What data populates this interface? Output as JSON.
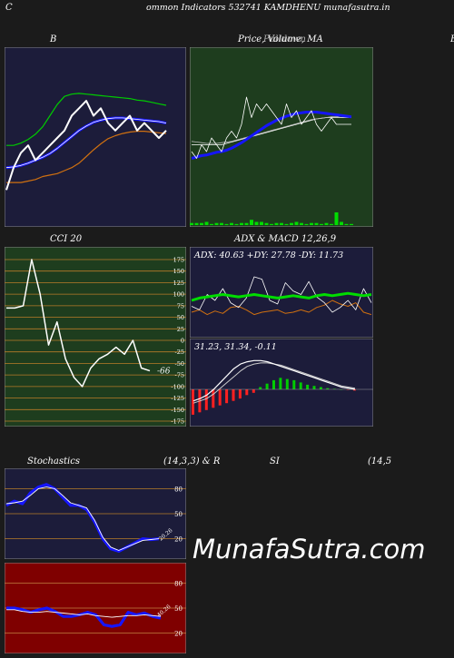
{
  "header": {
    "left_letter": "C",
    "title": "ommon  Indicators 532741 KAMDHENU munafasutra.in"
  },
  "labels": {
    "bb": "B",
    "price": "Price,  Volume, MA",
    "price_overlay": "Pulldown",
    "price_right": "B",
    "cci": "CCI 20",
    "adx_macd": "ADX  & MACD 12,26,9",
    "stoch": "Stochastics",
    "stoch_params": "(14,3,3) & R",
    "rsi": "SI",
    "rsi_params": "(14,5"
  },
  "watermark": "MunafaSutra.com",
  "colors": {
    "navy": "#1c1c3a",
    "green": "#1e3d1e",
    "red": "#7f0000",
    "blue_line": "#1515ff",
    "orange_line": "#d07010",
    "lime": "#00dd00"
  },
  "chart_data": [
    {
      "type": "line",
      "name": "bollinger",
      "series": [
        {
          "name": "price",
          "values": [
            14,
            17,
            19,
            20,
            18,
            19,
            20,
            21,
            22,
            24,
            25,
            26,
            24,
            25,
            23,
            22,
            23,
            24,
            22,
            23,
            22,
            21,
            22
          ]
        },
        {
          "name": "upper",
          "values": [
            20,
            20,
            20.3,
            20.8,
            21.5,
            22.5,
            24,
            25.5,
            26.6,
            26.9,
            27,
            26.9,
            26.8,
            26.7,
            26.6,
            26.5,
            26.4,
            26.3,
            26.1,
            26,
            25.8,
            25.6,
            25.4
          ]
        },
        {
          "name": "middle",
          "values": [
            17,
            17.1,
            17.3,
            17.6,
            18,
            18.4,
            18.9,
            19.6,
            20.4,
            21.2,
            22,
            22.6,
            23.1,
            23.4,
            23.6,
            23.7,
            23.7,
            23.6,
            23.5,
            23.4,
            23.3,
            23.2,
            23
          ]
        },
        {
          "name": "lower",
          "values": [
            15,
            15,
            15,
            15.2,
            15.4,
            15.8,
            16,
            16.2,
            16.6,
            17,
            17.6,
            18.5,
            19.4,
            20.2,
            20.9,
            21.3,
            21.6,
            21.8,
            21.9,
            21.9,
            21.8,
            21.7,
            21.6
          ]
        }
      ]
    },
    {
      "type": "line",
      "name": "price_volume_ma",
      "series": [
        {
          "name": "price",
          "values": [
            20,
            19,
            21,
            20,
            22,
            21,
            20,
            22,
            23,
            22,
            24,
            28,
            25,
            27,
            26,
            27,
            26,
            25,
            24,
            27,
            25,
            26,
            24,
            25,
            26,
            24,
            23,
            24,
            25,
            24,
            24,
            24,
            24
          ]
        },
        {
          "name": "ma_blue",
          "values": [
            19,
            19.2,
            19.4,
            19.5,
            19.7,
            19.9,
            20,
            20.2,
            20.5,
            20.9,
            21.3,
            21.8,
            22.3,
            22.8,
            23.3,
            23.8,
            24.2,
            24.6,
            24.9,
            25.2,
            25.4,
            25.6,
            25.7,
            25.8,
            25.8,
            25.8,
            25.7,
            25.6,
            25.5,
            25.4,
            25.3,
            25.2,
            25.1
          ]
        },
        {
          "name": "ma_white",
          "values": [
            21,
            21,
            21,
            21,
            21,
            21,
            21,
            21.2,
            21.4,
            21.6,
            21.8,
            22,
            22.2,
            22.4,
            22.6,
            22.8,
            23,
            23.2,
            23.4,
            23.6,
            23.8,
            24,
            24.2,
            24.4,
            24.6,
            24.8,
            24.9,
            25,
            25,
            25,
            25,
            25,
            25
          ]
        },
        {
          "name": "ma_white_2",
          "values": [
            21.5,
            21.4,
            21.3,
            21.2,
            21.2,
            21.2,
            21.3,
            21.4,
            21.5,
            21.7,
            21.9,
            22.1,
            22.3,
            22.5,
            22.7,
            22.9,
            23.1,
            23.3,
            23.5,
            23.7,
            23.9,
            24.1,
            24.3,
            24.5,
            24.7,
            24.8,
            24.9,
            25,
            25.1,
            25.1,
            25.2,
            25.2,
            25.2
          ]
        },
        {
          "name": "volume",
          "values": [
            2,
            2,
            2,
            3,
            1,
            2,
            2,
            1,
            2,
            1,
            2,
            2,
            5,
            3,
            3,
            2,
            1,
            2,
            2,
            1,
            2,
            3,
            2,
            1,
            2,
            2,
            1,
            2,
            1,
            12,
            3,
            1,
            1
          ]
        }
      ]
    },
    {
      "type": "line",
      "name": "cci",
      "ylim": [
        -175,
        175
      ],
      "ticks": [
        175,
        150,
        125,
        100,
        75,
        50,
        25,
        0,
        -25,
        -50,
        -75,
        -100,
        -125,
        -150,
        -175
      ],
      "last_value_label": "-66",
      "series": [
        {
          "name": "cci",
          "values": [
            70,
            70,
            75,
            175,
            100,
            -10,
            40,
            -40,
            -80,
            -100,
            -60,
            -40,
            -30,
            -15,
            -30,
            0,
            -60,
            -66
          ]
        }
      ]
    },
    {
      "type": "line",
      "name": "adx",
      "readout": "ADX: 40.63  +DY: 27.78  -DY: 11.73",
      "series": [
        {
          "name": "adx",
          "values": [
            30,
            32,
            33,
            34,
            35,
            34,
            33,
            34,
            35,
            34,
            33,
            32,
            33,
            34,
            33,
            32,
            34,
            35,
            34,
            35,
            36,
            35,
            34,
            35
          ]
        },
        {
          "name": "plus_dy",
          "values": [
            25,
            22,
            35,
            30,
            40,
            28,
            24,
            32,
            50,
            48,
            30,
            27,
            45,
            38,
            35,
            46,
            33,
            28,
            20,
            24,
            30,
            22,
            40,
            28
          ]
        },
        {
          "name": "minus_dy",
          "values": [
            20,
            22,
            18,
            21,
            19,
            24,
            25,
            22,
            18,
            20,
            21,
            22,
            19,
            20,
            22,
            20,
            24,
            26,
            30,
            27,
            25,
            28,
            20,
            18
          ]
        }
      ]
    },
    {
      "type": "bar",
      "name": "macd",
      "readout": "31.23,  31.34,  -0.11",
      "series": [
        {
          "name": "histogram",
          "values": [
            -2.2,
            -2,
            -1.8,
            -1.6,
            -1.4,
            -1.2,
            -1,
            -0.8,
            -0.5,
            -0.3,
            0.2,
            0.5,
            0.8,
            1,
            0.9,
            0.8,
            0.6,
            0.4,
            0.3,
            0.2,
            0.1,
            0.05,
            0,
            -0.05,
            -0.1
          ]
        },
        {
          "name": "macd",
          "values": [
            -1,
            -0.8,
            -0.5,
            0,
            0.6,
            1.2,
            1.8,
            2.2,
            2.4,
            2.5,
            2.5,
            2.4,
            2.2,
            2,
            1.8,
            1.6,
            1.4,
            1.2,
            1,
            0.8,
            0.6,
            0.4,
            0.2,
            0.1,
            0
          ]
        },
        {
          "name": "signal",
          "values": [
            -1.2,
            -1,
            -0.8,
            -0.4,
            0.1,
            0.6,
            1.1,
            1.6,
            2,
            2.2,
            2.3,
            2.3,
            2.2,
            2.1,
            1.9,
            1.7,
            1.5,
            1.3,
            1.1,
            0.9,
            0.7,
            0.5,
            0.3,
            0.2,
            0.1
          ]
        }
      ]
    },
    {
      "type": "line",
      "name": "stochastics",
      "ylim": [
        0,
        100
      ],
      "ticks": [
        80,
        50,
        20
      ],
      "last_value_label": "20.26",
      "series": [
        {
          "name": "k",
          "values": [
            60,
            65,
            62,
            75,
            82,
            85,
            80,
            70,
            60,
            60,
            55,
            40,
            20,
            8,
            5,
            10,
            15,
            20,
            19,
            20
          ]
        },
        {
          "name": "d",
          "values": [
            62,
            63,
            65,
            72,
            80,
            82,
            80,
            72,
            63,
            60,
            57,
            42,
            22,
            10,
            6,
            10,
            14,
            18,
            19,
            20
          ]
        }
      ]
    },
    {
      "type": "line",
      "name": "williams_r",
      "ylim": [
        0,
        100
      ],
      "ticks": [
        80,
        50,
        20
      ],
      "last_value_label": "40.26",
      "series": [
        {
          "name": "r",
          "values": [
            50,
            50,
            48,
            45,
            48,
            50,
            46,
            40,
            40,
            42,
            45,
            42,
            30,
            28,
            30,
            45,
            42,
            44,
            40,
            38
          ]
        },
        {
          "name": "rsi",
          "values": [
            48,
            48,
            46,
            45,
            45,
            46,
            45,
            44,
            43,
            42,
            43,
            41,
            40,
            39,
            40,
            41,
            41,
            42,
            41,
            40
          ]
        }
      ]
    }
  ]
}
